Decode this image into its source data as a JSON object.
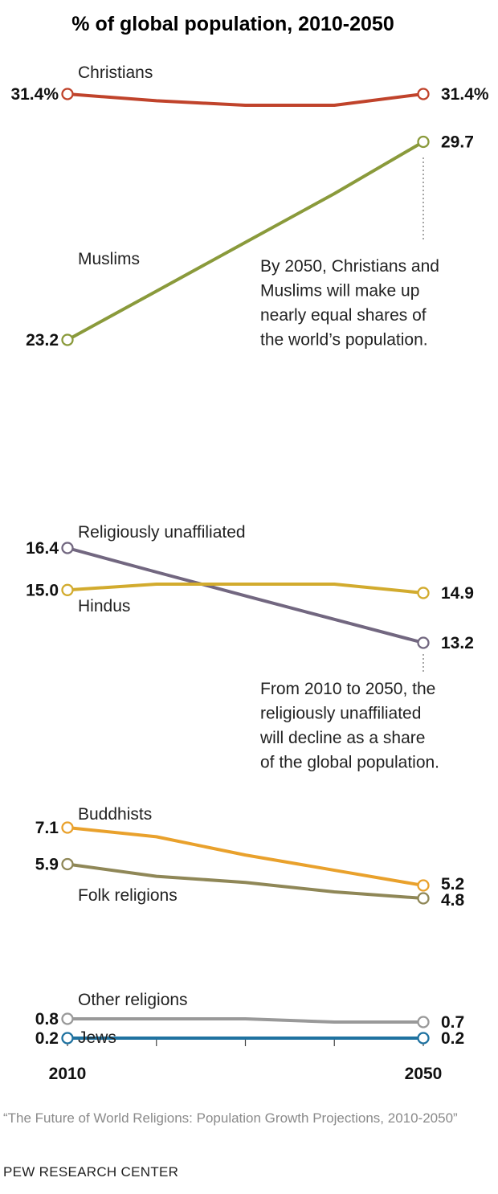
{
  "chart_data": {
    "type": "line",
    "title": "% of global population, 2010-2050",
    "x": [
      2010,
      2020,
      2030,
      2040,
      2050
    ],
    "x_tick_labels": [
      "2010",
      "",
      "",
      "",
      "2050"
    ],
    "series": [
      {
        "name": "Christians",
        "color": "#c0432b",
        "values": [
          31.4,
          31.1,
          30.9,
          30.9,
          31.4
        ],
        "start_label": "31.4%",
        "end_label": "31.4%"
      },
      {
        "name": "Muslims",
        "color": "#8a9a3b",
        "values": [
          23.2,
          24.8,
          26.4,
          28.0,
          29.7
        ],
        "start_label": "23.2",
        "end_label": "29.7"
      },
      {
        "name": "Religiously unaffiliated",
        "color": "#726780",
        "values": [
          16.4,
          15.6,
          14.8,
          14.0,
          13.2
        ],
        "start_label": "16.4",
        "end_label": "13.2"
      },
      {
        "name": "Hindus",
        "color": "#d2ab2e",
        "values": [
          15.0,
          15.2,
          15.2,
          15.2,
          14.9
        ],
        "start_label": "15.0",
        "end_label": "14.9"
      },
      {
        "name": "Buddhists",
        "color": "#e9a12c",
        "values": [
          7.1,
          6.8,
          6.2,
          5.7,
          5.2
        ],
        "start_label": "7.1",
        "end_label": "5.2"
      },
      {
        "name": "Folk religions",
        "color": "#8f8757",
        "values": [
          5.9,
          5.5,
          5.3,
          5.0,
          4.8
        ],
        "start_label": "5.9",
        "end_label": "4.8"
      },
      {
        "name": "Other religions",
        "color": "#999999",
        "values": [
          0.8,
          0.8,
          0.8,
          0.7,
          0.7
        ],
        "start_label": "0.8",
        "end_label": "0.7"
      },
      {
        "name": "Jews",
        "color": "#1f72a0",
        "values": [
          0.2,
          0.2,
          0.2,
          0.2,
          0.2
        ],
        "start_label": "0.2",
        "end_label": "0.2"
      }
    ],
    "annotations": [
      {
        "attached_to": "Muslims",
        "lines": [
          "By 2050, Christians and",
          "Muslims will make up",
          "nearly equal shares of",
          "the world’s population."
        ]
      },
      {
        "attached_to": "Religiously unaffiliated",
        "lines": [
          "From 2010 to 2050, the",
          "religiously unaffiliated",
          "will decline as a share",
          "of the global population."
        ]
      }
    ],
    "grid": false,
    "legend": "labels on lines"
  },
  "source": "“The Future of World Religions: Population Growth Projections, 2010-2050”",
  "credit": "PEW RESEARCH CENTER"
}
